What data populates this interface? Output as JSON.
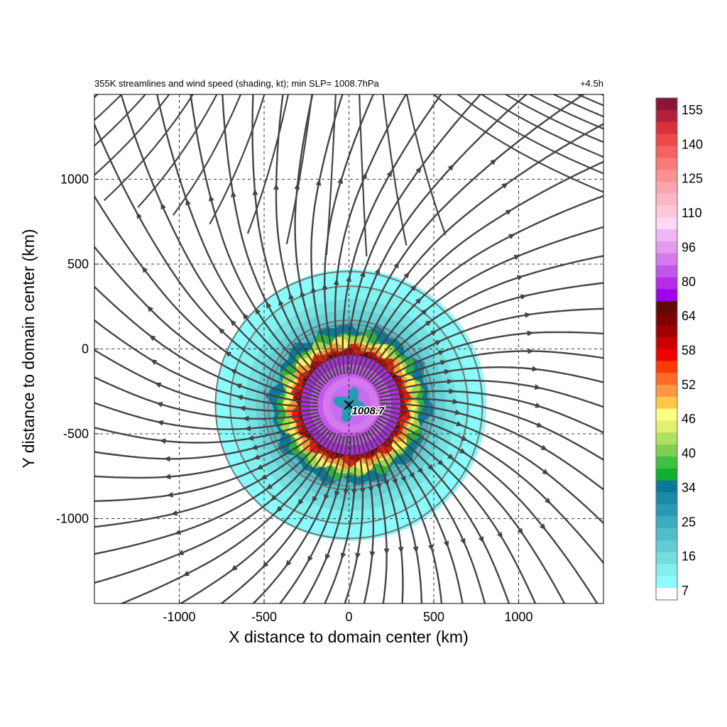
{
  "chart_data": {
    "type": "heatmap",
    "title": "355K streamlines and wind speed (shading, kt); min SLP= 1008.7hPa",
    "time_label": "+4.5h",
    "xlabel": "X distance to domain center (km)",
    "ylabel": "Y distance to domain center (km)",
    "xlim": [
      -1500,
      1500
    ],
    "ylim": [
      -1500,
      1500
    ],
    "x_ticks": [
      -1000,
      -500,
      0,
      500,
      1000
    ],
    "y_ticks": [
      1000,
      500,
      0,
      -500,
      -1000
    ],
    "x_tick_labels": [
      "-1000",
      "-500",
      "0",
      "500",
      "1000"
    ],
    "y_tick_labels": [
      "1000",
      "500",
      "0",
      "-500",
      "-1000"
    ],
    "grid": "dashed",
    "storm_center": {
      "x": 0,
      "y": -330,
      "label": "1008.7",
      "marker": "x"
    },
    "range_rings_radius_km": [
      500,
      700
    ],
    "wind_field": {
      "center_x": 10,
      "center_y": -330,
      "outer_extent_km": 800,
      "max_wind_radius_km": 300,
      "eye_radius_km": 80
    },
    "colorbar": {
      "label_values": [
        "155",
        "140",
        "125",
        "110",
        "96",
        "80",
        "64",
        "58",
        "52",
        "46",
        "40",
        "34",
        "25",
        "16",
        "7"
      ],
      "colors_top_to_bottom": [
        "#8b1538",
        "#b4203c",
        "#d8303c",
        "#ee4848",
        "#f46262",
        "#f87a7a",
        "#fa9090",
        "#fba4b0",
        "#fdb6c6",
        "#fdc8da",
        "#fcd8f4",
        "#eeb6f4",
        "#e49af0",
        "#d47aec",
        "#c256ea",
        "#b42ce8",
        "#a000f0",
        "#5c0a0a",
        "#7e0000",
        "#a00000",
        "#c80000",
        "#ee0000",
        "#ff3a00",
        "#ff6a28",
        "#ff9640",
        "#ffc848",
        "#ffff80",
        "#e0f070",
        "#b0e060",
        "#80d050",
        "#40c040",
        "#10b030",
        "#0a7898",
        "#1a8aa8",
        "#2a9ab4",
        "#3aaebe",
        "#50bec8",
        "#62ccd4",
        "#74dcdc",
        "#80f0ee",
        "#8cfcfc",
        "#ffffff"
      ]
    },
    "streamlines": "radial outflow from storm center, curving anticyclonically toward domain edges"
  }
}
